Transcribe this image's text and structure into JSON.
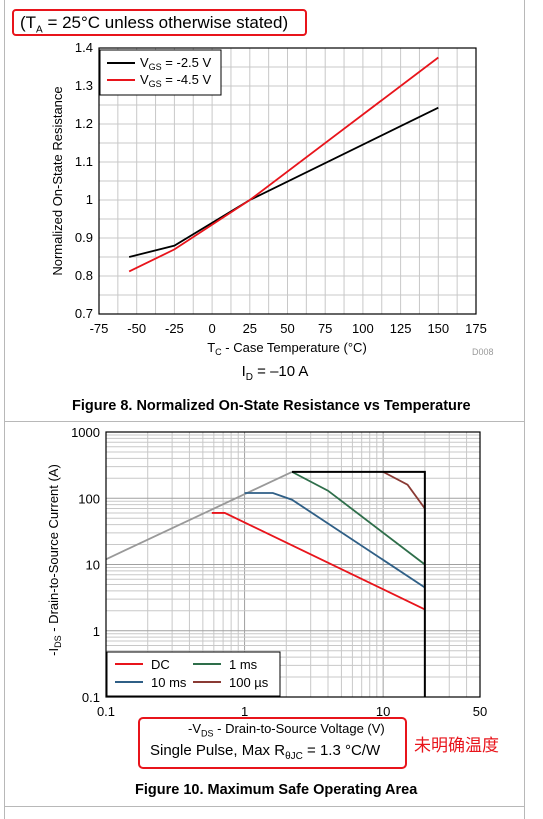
{
  "header_note": {
    "prefix": "(T",
    "sub": "A",
    "rest": " = 25°C unless otherwise stated)"
  },
  "figure8": {
    "title": "Figure 8. Normalized On-State Resistance vs Temperature",
    "condition": {
      "prefix": "I",
      "sub": "D",
      "rest": " = –10 A"
    },
    "watermark": "D008",
    "ylabel": "Normalized On-State Resistance",
    "xlabel": {
      "prefix": "T",
      "sub": "C",
      "rest": " - Case Temperature (°C)"
    },
    "legend": [
      {
        "prefix": "V",
        "sub": "GS",
        "rest": " = -2.5 V",
        "color": "#000000"
      },
      {
        "prefix": "V",
        "sub": "GS",
        "rest": " = -4.5 V",
        "color": "#e8141b"
      }
    ]
  },
  "figure10": {
    "title": "Figure 10. Maximum Safe Operating Area",
    "ylabel": "-I_DS - Drain-to-Source Current (A)",
    "xlabel": {
      "prefix": "-V",
      "sub": "DS",
      "rest": " - Drain-to-Source Voltage (V)"
    },
    "pulse": {
      "prefix": "Single Pulse, Max R",
      "sub": "θJC",
      "rest": " = 1.3 °C/W"
    },
    "annotation": "未明确温度",
    "legend": [
      {
        "label": "DC",
        "color": "#e8141b"
      },
      {
        "label": "1 ms",
        "color": "#2e6e4a"
      },
      {
        "label": "10 ms",
        "color": "#2f5f86"
      },
      {
        "label": "100 µs",
        "color": "#8a3a34"
      }
    ]
  },
  "chart_data": [
    {
      "type": "line",
      "title": "Figure 8. Normalized On-State Resistance vs Temperature",
      "xlabel": "TC - Case Temperature (°C)",
      "ylabel": "Normalized On-State Resistance",
      "xlim": [
        -75,
        175
      ],
      "ylim": [
        0.7,
        1.4
      ],
      "xticks": [
        -75,
        -50,
        -25,
        0,
        25,
        50,
        75,
        100,
        125,
        150,
        175
      ],
      "yticks": [
        0.7,
        0.8,
        0.9,
        1,
        1.1,
        1.2,
        1.3,
        1.4
      ],
      "grid": true,
      "legend_position": "top-left",
      "series": [
        {
          "name": "VGS = -2.5 V",
          "color": "#000000",
          "x": [
            -55,
            -25,
            25,
            150
          ],
          "y": [
            0.85,
            0.88,
            1.0,
            1.243
          ]
        },
        {
          "name": "VGS = -4.5 V",
          "color": "#e8141b",
          "x": [
            -55,
            -25,
            25,
            150
          ],
          "y": [
            0.812,
            0.87,
            1.0,
            1.375
          ]
        }
      ]
    },
    {
      "type": "line",
      "title": "Figure 10. Maximum Safe Operating Area",
      "xlabel": "-VDS - Drain-to-Source Voltage (V)",
      "ylabel": "-IDS - Drain-to-Source Current (A)",
      "xscale": "log",
      "yscale": "log",
      "xlim": [
        0.1,
        50
      ],
      "ylim": [
        0.1,
        1000
      ],
      "xticks": [
        0.1,
        1,
        10,
        50
      ],
      "yticks": [
        0.1,
        1,
        10,
        100,
        1000
      ],
      "grid": true,
      "legend_position": "bottom-left",
      "series": [
        {
          "name": "",
          "color": "#999999",
          "x": [
            0.1,
            2.2
          ],
          "y": [
            12,
            250
          ]
        },
        {
          "name": "DC",
          "color": "#e8141b",
          "x": [
            0.58,
            0.72,
            20
          ],
          "y": [
            60,
            60,
            2.1
          ]
        },
        {
          "name": "10 ms",
          "color": "#2f5f86",
          "x": [
            1.0,
            1.6,
            2.2,
            20
          ],
          "y": [
            120,
            120,
            95,
            4.5
          ]
        },
        {
          "name": "1 ms",
          "color": "#2e6e4a",
          "x": [
            2.2,
            4,
            20
          ],
          "y": [
            250,
            130,
            10
          ]
        },
        {
          "name": "100 µs",
          "color": "#8a3a34",
          "x": [
            10,
            15,
            20
          ],
          "y": [
            250,
            160,
            70
          ]
        },
        {
          "name": "",
          "color": "#000000",
          "x": [
            2.2,
            20,
            20
          ],
          "y": [
            250,
            250,
            0.1
          ]
        }
      ]
    }
  ]
}
